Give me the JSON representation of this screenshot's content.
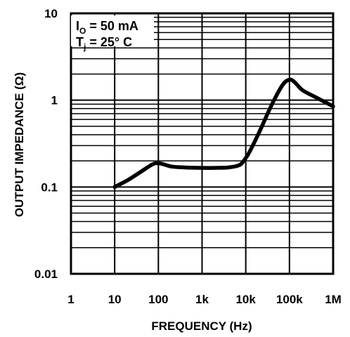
{
  "chart_data": {
    "type": "line",
    "title": "",
    "xlabel": "FREQUENCY (Hz)",
    "ylabel": "OUTPUT IMPEDANCE (Ω)",
    "x_scale": "log",
    "y_scale": "log",
    "xlim": [
      1,
      1000000
    ],
    "ylim": [
      0.01,
      10
    ],
    "grid": true,
    "x_ticks": [
      1,
      10,
      100,
      1000,
      10000,
      100000,
      1000000
    ],
    "x_tick_labels": [
      "1",
      "10",
      "100",
      "1k",
      "10k",
      "100k",
      "1M"
    ],
    "y_ticks": [
      0.01,
      0.1,
      1,
      10
    ],
    "y_tick_labels": [
      "0.01",
      "0.1",
      "1",
      "10"
    ],
    "annotations": [
      {
        "main": "I",
        "sub": "O",
        "rest": " = 50 mA"
      },
      {
        "main": "T",
        "sub": "j",
        "rest": " = 25° C"
      }
    ],
    "series": [
      {
        "x": [
          10,
          20,
          40,
          70,
          90,
          120,
          200,
          400,
          1000,
          2000,
          4000,
          7000,
          9000,
          12000,
          20000,
          40000,
          70000,
          100000,
          130000,
          200000,
          400000,
          1000000
        ],
        "y": [
          0.1,
          0.12,
          0.15,
          0.18,
          0.188,
          0.185,
          0.172,
          0.168,
          0.166,
          0.166,
          0.168,
          0.178,
          0.2,
          0.25,
          0.42,
          0.9,
          1.5,
          1.72,
          1.62,
          1.3,
          1.08,
          0.85
        ]
      }
    ]
  }
}
